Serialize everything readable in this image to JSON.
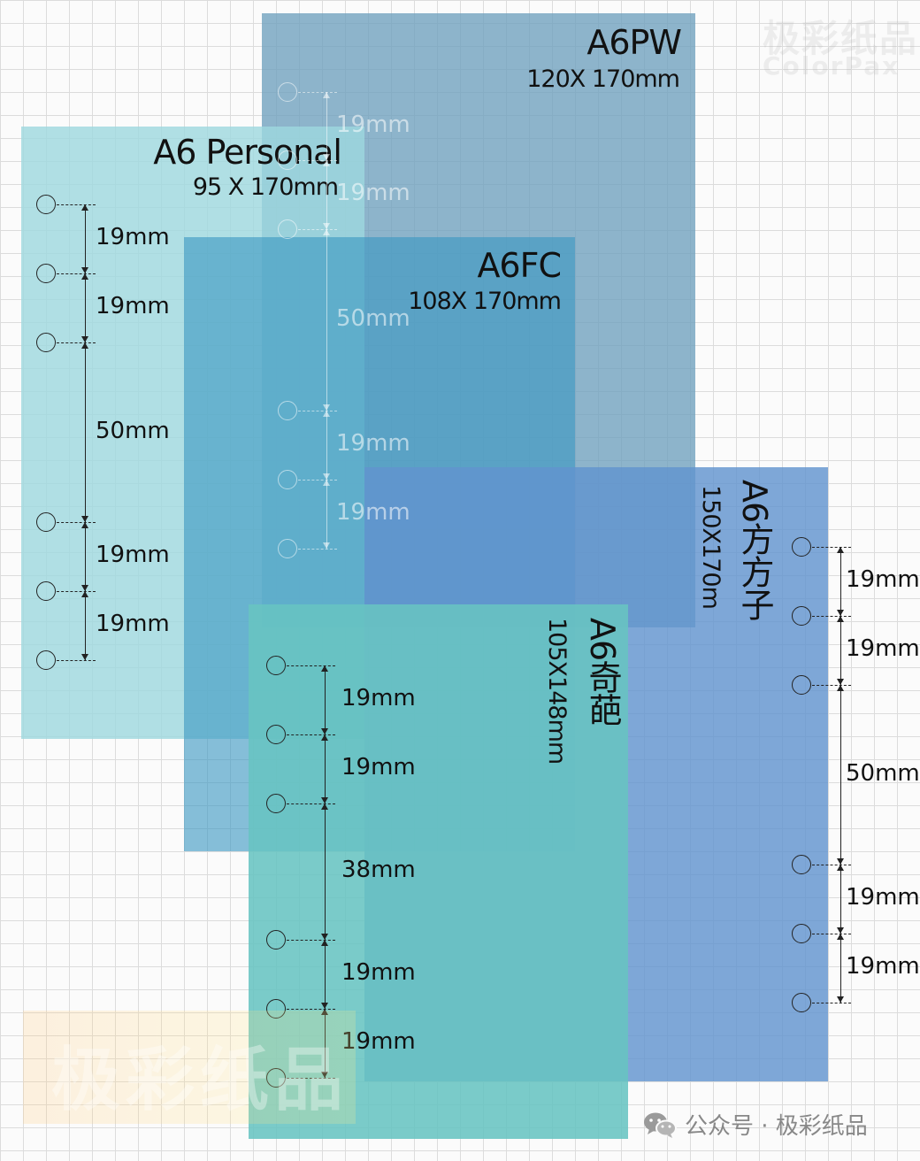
{
  "panels": {
    "pw": {
      "title": "A6PW",
      "size": "120X 170mm",
      "color": "#7ca7c2"
    },
    "personal": {
      "title": "A6 Personal",
      "size": "95 X 170mm",
      "color": "#a8dce2"
    },
    "fc": {
      "title": "A6FC",
      "size": "108X 170mm",
      "color": "#4aa3c6"
    },
    "fangfangzi": {
      "title": "A6方方子",
      "size": "150X170m",
      "color": "#6e9ed0"
    },
    "qipa": {
      "title": "A6奇葩",
      "size": "105X148mm",
      "color": "#6cc8c4"
    }
  },
  "spacings": {
    "personal": [
      "19mm",
      "19mm",
      "50mm",
      "19mm",
      "19mm"
    ],
    "pw": [
      "19mm",
      "19mm",
      "50mm",
      "19mm",
      "19mm"
    ],
    "fangfangzi": [
      "19mm",
      "19mm",
      "50mm",
      "19mm",
      "19mm"
    ],
    "qipa": [
      "19mm",
      "19mm",
      "38mm",
      "19mm",
      "19mm"
    ]
  },
  "watermark": {
    "top": "极彩纸品",
    "top_sub": "ColorPax",
    "bottom": "极彩纸品"
  },
  "footer": {
    "text": "公众号 · 极彩纸品",
    "icon": "wechat-icon",
    "color": "#888888"
  }
}
